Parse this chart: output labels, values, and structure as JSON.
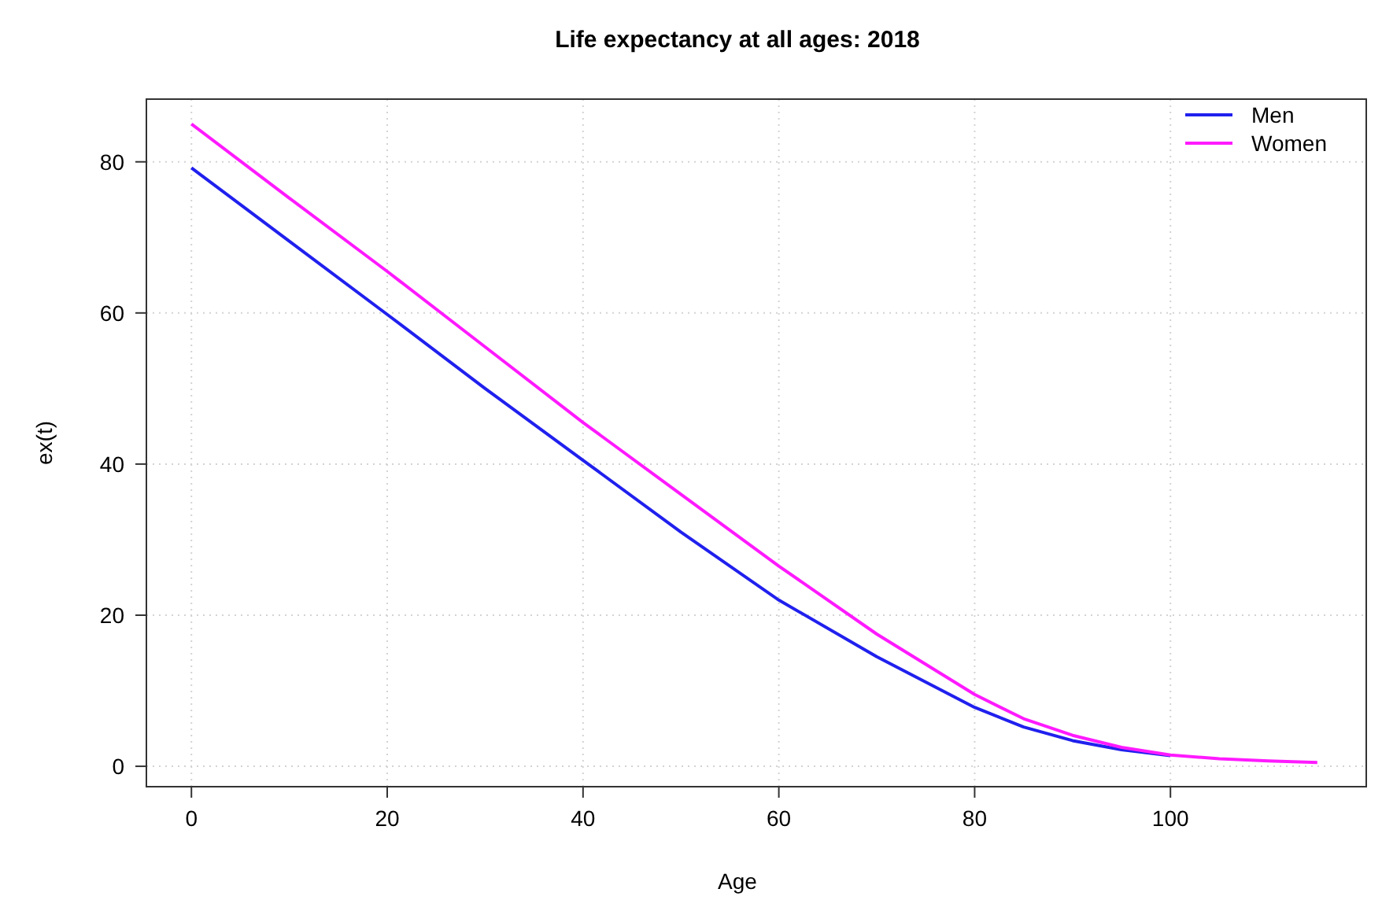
{
  "chart_data": {
    "type": "line",
    "title": "Life expectancy at all ages: 2018",
    "xlabel": "Age",
    "ylabel": "ex(t)",
    "x": [
      0,
      10,
      20,
      30,
      40,
      50,
      60,
      70,
      80,
      85,
      90,
      95,
      100,
      105,
      110,
      115
    ],
    "series": [
      {
        "name": "Men",
        "color": "#2020ee",
        "values": [
          79.2,
          69.5,
          59.8,
          50,
          40.5,
          31,
          22,
          14.5,
          7.8,
          5.2,
          3.4,
          2.2,
          1.4,
          null,
          null,
          null
        ]
      },
      {
        "name": "Women",
        "color": "#ff1aff",
        "values": [
          85,
          75.2,
          65.5,
          55.5,
          45.5,
          36,
          26.5,
          17.5,
          9.5,
          6.3,
          4.1,
          2.5,
          1.5,
          1.0,
          0.7,
          0.5
        ]
      }
    ],
    "xlim": [
      -4.6,
      120
    ],
    "ylim": [
      -2.7,
      88.3
    ],
    "xticks": [
      0,
      20,
      40,
      60,
      80,
      100
    ],
    "yticks": [
      0,
      20,
      40,
      60,
      80
    ],
    "grid": true,
    "legend": "top right",
    "marker": "none",
    "line_style": "solid"
  }
}
